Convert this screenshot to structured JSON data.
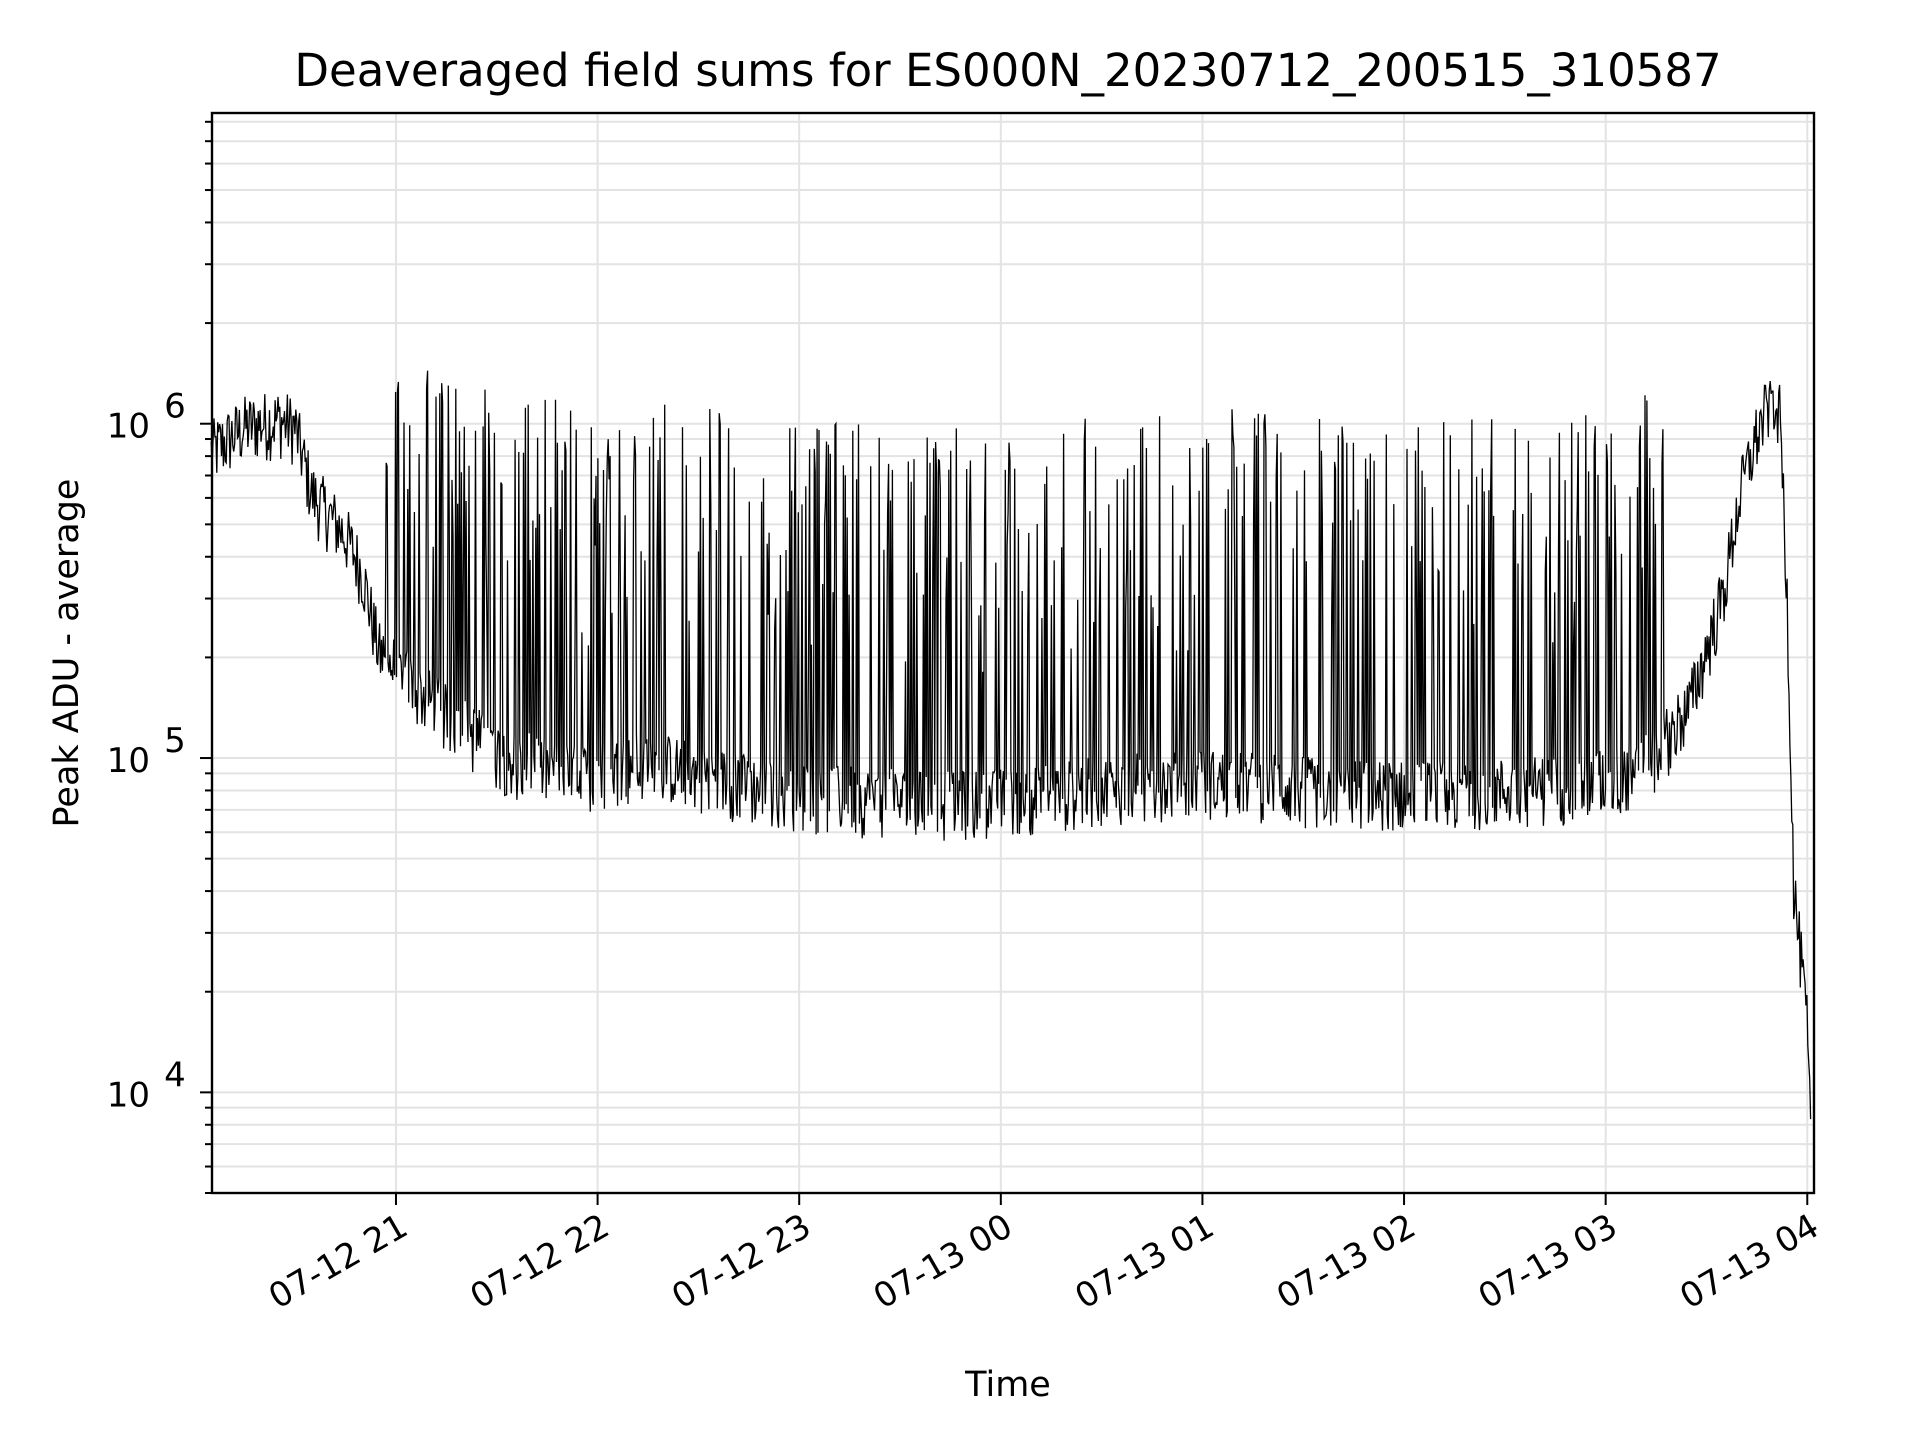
{
  "chart_data": {
    "type": "line",
    "title": "Deaveraged field sums for ES000N_20230712_200515_310587",
    "xlabel": "Time",
    "ylabel": "Peak ADU - average",
    "yscale": "log",
    "ylim": [
      5000,
      8500000
    ],
    "xlim": [
      "2023-07-12 20:05:15",
      "2023-07-13 04:02:00"
    ],
    "grid": true,
    "line_color": "#000000",
    "x_ticks": [
      {
        "x": "2023-07-12 21:00",
        "label": "07-12 21"
      },
      {
        "x": "2023-07-12 22:00",
        "label": "07-12 22"
      },
      {
        "x": "2023-07-12 23:00",
        "label": "07-12 23"
      },
      {
        "x": "2023-07-13 00:00",
        "label": "07-13 00"
      },
      {
        "x": "2023-07-13 01:00",
        "label": "07-13 01"
      },
      {
        "x": "2023-07-13 02:00",
        "label": "07-13 02"
      },
      {
        "x": "2023-07-13 03:00",
        "label": "07-13 03"
      },
      {
        "x": "2023-07-13 04:00",
        "label": "07-13 04"
      }
    ],
    "y_ticks": [
      {
        "y": 10000,
        "base": "10",
        "exp": "4"
      },
      {
        "y": 100000,
        "base": "10",
        "exp": "5"
      },
      {
        "y": 1000000,
        "base": "10",
        "exp": "6"
      }
    ],
    "series": [
      {
        "x": [
          "2023-07-12 20:05",
          "2023-07-12 20:15",
          "2023-07-12 20:25",
          "2023-07-12 20:30",
          "2023-07-12 20:35",
          "2023-07-12 20:45",
          "2023-07-12 20:50",
          "2023-07-12 20:55",
          "2023-07-12 21:05",
          "2023-07-12 21:15",
          "2023-07-12 21:25",
          "2023-07-12 21:35",
          "2023-07-12 21:45",
          "2023-07-12 21:55",
          "2023-07-12 22:05",
          "2023-07-12 22:15",
          "2023-07-12 22:25",
          "2023-07-12 22:35",
          "2023-07-12 22:45",
          "2023-07-12 22:55",
          "2023-07-12 23:05",
          "2023-07-12 23:15",
          "2023-07-12 23:25",
          "2023-07-12 23:35",
          "2023-07-12 23:45",
          "2023-07-12 23:55",
          "2023-07-13 00:05",
          "2023-07-13 00:15",
          "2023-07-13 00:25",
          "2023-07-13 00:35",
          "2023-07-13 00:45",
          "2023-07-13 00:55",
          "2023-07-13 01:05",
          "2023-07-13 01:15",
          "2023-07-13 01:25",
          "2023-07-13 01:35",
          "2023-07-13 01:45",
          "2023-07-13 01:55",
          "2023-07-13 02:05",
          "2023-07-13 02:15",
          "2023-07-13 02:25",
          "2023-07-13 02:35",
          "2023-07-13 02:45",
          "2023-07-13 02:55",
          "2023-07-13 03:05",
          "2023-07-13 03:15",
          "2023-07-13 03:25",
          "2023-07-13 03:35",
          "2023-07-13 03:40",
          "2023-07-13 03:45",
          "2023-07-13 03:50",
          "2023-07-13 03:52",
          "2023-07-13 03:54",
          "2023-07-13 03:56",
          "2023-07-13 03:58",
          "2023-07-13 04:00",
          "2023-07-13 04:01"
        ],
        "y": [
          800000,
          950000,
          1000000,
          950000,
          600000,
          450000,
          350000,
          200000,
          160000,
          130000,
          110000,
          95000,
          90000,
          85000,
          90000,
          95000,
          90000,
          85000,
          80000,
          78000,
          75000,
          74000,
          73000,
          72000,
          72000,
          72000,
          74000,
          76000,
          78000,
          80000,
          82000,
          83000,
          83000,
          82000,
          80000,
          78000,
          77000,
          77000,
          77000,
          77000,
          78000,
          79000,
          80000,
          82000,
          85000,
          100000,
          140000,
          300000,
          600000,
          900000,
          1200000,
          1000000,
          300000,
          40000,
          25000,
          15000,
          7000
        ]
      }
    ]
  }
}
